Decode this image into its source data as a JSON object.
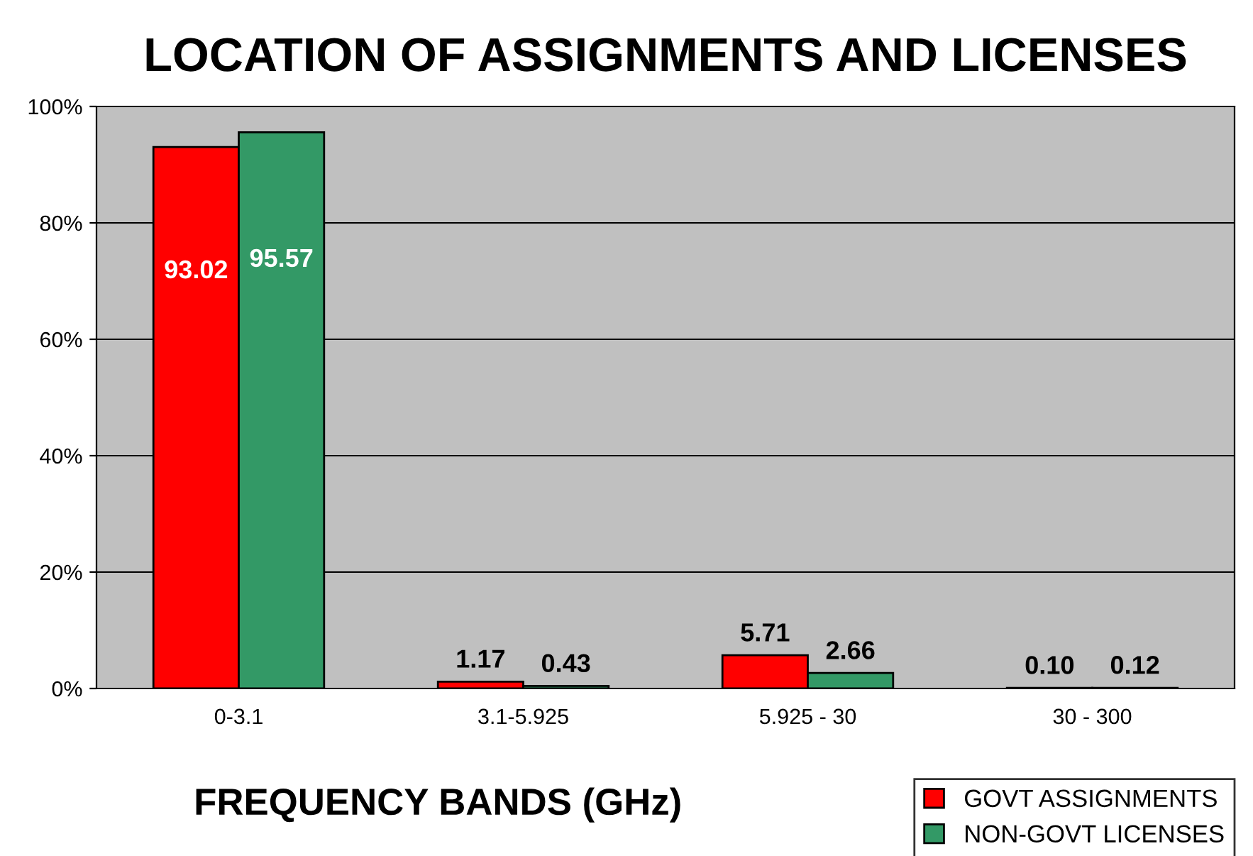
{
  "chart_data": {
    "type": "bar",
    "title": "LOCATION OF ASSIGNMENTS AND LICENSES",
    "xlabel": "FREQUENCY BANDS (GHz)",
    "categories": [
      "0-3.1",
      "3.1-5.925",
      "5.925 - 30",
      "30 - 300"
    ],
    "series": [
      {
        "name": "GOVT ASSIGNMENTS",
        "color": "#ff0000",
        "values": [
          93.02,
          1.17,
          5.71,
          0.1
        ],
        "value_labels": [
          "93.02",
          "1.17",
          "5.71",
          "0.10"
        ]
      },
      {
        "name": "NON-GOVT LICENSES",
        "color": "#339966",
        "values": [
          95.57,
          0.43,
          2.66,
          0.12
        ],
        "value_labels": [
          "95.57",
          "0.43",
          "2.66",
          "0.12"
        ]
      }
    ],
    "ylim": [
      0,
      100
    ],
    "yticks": [
      {
        "value": 0,
        "label": "0%"
      },
      {
        "value": 20,
        "label": "20%"
      },
      {
        "value": 40,
        "label": "40%"
      },
      {
        "value": 60,
        "label": "60%"
      },
      {
        "value": 80,
        "label": "80%"
      },
      {
        "value": 100,
        "label": "100%"
      }
    ],
    "grid": "y",
    "legend": "bottom right"
  }
}
